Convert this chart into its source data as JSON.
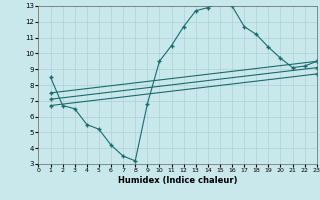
{
  "bg_color": "#c8e8ec",
  "grid_color": "#a8ccd0",
  "line_color": "#1a6b6b",
  "xlim": [
    0,
    23
  ],
  "ylim": [
    3,
    13
  ],
  "xticks": [
    0,
    1,
    2,
    3,
    4,
    5,
    6,
    7,
    8,
    9,
    10,
    11,
    12,
    13,
    14,
    15,
    16,
    17,
    18,
    19,
    20,
    21,
    22,
    23
  ],
  "yticks": [
    3,
    4,
    5,
    6,
    7,
    8,
    9,
    10,
    11,
    12,
    13
  ],
  "xlabel": "Humidex (Indice chaleur)",
  "main_x": [
    1,
    2,
    3,
    4,
    5,
    6,
    7,
    8,
    9,
    10,
    11,
    12,
    13,
    14,
    15,
    16,
    17,
    18,
    19,
    20,
    21,
    22,
    23
  ],
  "main_y": [
    8.5,
    6.7,
    6.5,
    5.5,
    5.2,
    4.2,
    3.5,
    3.2,
    6.8,
    9.5,
    10.5,
    11.7,
    12.7,
    12.9,
    13.2,
    13.0,
    11.7,
    11.2,
    10.4,
    9.7,
    9.1,
    9.2,
    9.5
  ],
  "line1_x": [
    1,
    23
  ],
  "line1_y": [
    7.5,
    9.5
  ],
  "line2_x": [
    1,
    23
  ],
  "line2_y": [
    7.1,
    9.1
  ],
  "line3_x": [
    1,
    23
  ],
  "line3_y": [
    6.7,
    8.7
  ]
}
